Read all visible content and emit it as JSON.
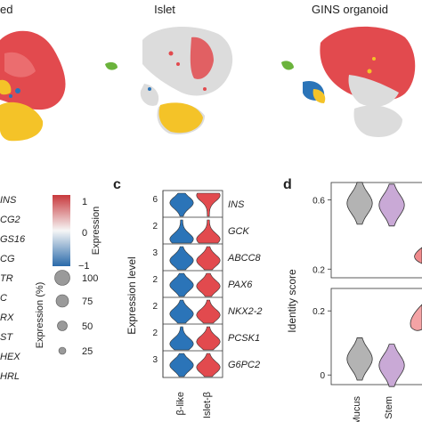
{
  "umap_titles": [
    "ed",
    "Islet",
    "GINS organoid"
  ],
  "dotplot": {
    "genes": [
      "INS",
      "CG2",
      "GS16",
      "CG",
      "TR",
      "C",
      "RX",
      "ST",
      "HEX",
      "HRL"
    ],
    "color_legend": {
      "label": "Expression",
      "ticks": [
        "1",
        "0",
        "−1"
      ]
    },
    "size_legend": {
      "label": "Expression (%)",
      "values": [
        "100",
        "75",
        "50",
        "25"
      ]
    }
  },
  "panels": {
    "c": "c",
    "d": "d"
  },
  "chart_data": [
    {
      "type": "violin",
      "panel": "c",
      "ylabel": "Expression level",
      "categories": [
        "β-like",
        "Islet-β"
      ],
      "colors": {
        "β-like": "#2b74b8",
        "Islet-β": "#e24a4e"
      },
      "rows": [
        {
          "gene": "INS",
          "ymax_label": "6",
          "ymid_label": "",
          "median_frac": [
            0.55,
            0.9
          ]
        },
        {
          "gene": "GCK",
          "ymax_label": "2",
          "ymid_label": "",
          "median_frac": [
            0.1,
            0.1
          ]
        },
        {
          "gene": "ABCC8",
          "ymax_label": "3",
          "ymid_label": "",
          "median_frac": [
            0.35,
            0.35
          ]
        },
        {
          "gene": "PAX6",
          "ymax_label": "2",
          "ymid_label": "",
          "median_frac": [
            0.45,
            0.4
          ]
        },
        {
          "gene": "NKX2-2",
          "ymax_label": "2",
          "ymid_label": "",
          "median_frac": [
            0.35,
            0.3
          ]
        },
        {
          "gene": "PCSK1",
          "ymax_label": "2",
          "ymid_label": "",
          "median_frac": [
            0.2,
            0.3
          ]
        },
        {
          "gene": "G6PC2",
          "ymax_label": "3",
          "ymid_label": "",
          "median_frac": [
            0.45,
            0.35
          ]
        }
      ]
    },
    {
      "type": "violin",
      "panel": "d",
      "ylabel": "Identity score",
      "categories": [
        "Mucus",
        "Stem"
      ],
      "colors": {
        "Mucus": "#b3b3b3",
        "Stem": "#c9a9d6"
      },
      "top": {
        "yticks": [
          0.6,
          0.2
        ],
        "ylim": [
          0.15,
          0.7
        ],
        "medians": [
          0.58,
          0.57
        ]
      },
      "bottom": {
        "yticks": [
          0.2,
          0
        ],
        "ylim": [
          -0.03,
          0.27
        ],
        "medians": [
          0.05,
          0.03
        ]
      }
    }
  ]
}
